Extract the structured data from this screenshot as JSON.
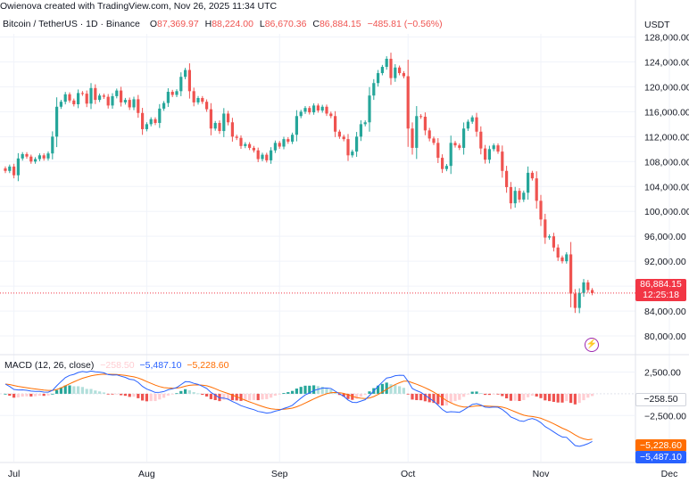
{
  "header": {
    "attribution": "Owienova created with TradingView.com, Nov 26, 2025 11:34 UTC",
    "symbol": "Bitcoin / TetherUS · 1D · Binance",
    "o_label": "O",
    "o_value": "87,369.97",
    "h_label": "H",
    "h_value": "88,224.00",
    "l_label": "L",
    "l_value": "86,670.36",
    "c_label": "C",
    "c_value": "86,884.15",
    "change": "−485.81 (−0.56%)",
    "currency": "USDT"
  },
  "price_badge": {
    "price": "86,884.15",
    "countdown": "12:25:18"
  },
  "macd": {
    "label": "MACD (12, 26, close)",
    "hist_value": "−258.50",
    "macd_value": "−5,487.10",
    "signal_value": "−5,228.60"
  },
  "colors": {
    "up": "#26a69a",
    "down": "#ef5350",
    "up_light": "#b2dfdb",
    "down_light": "#ffcdd2",
    "macd_line": "#2962ff",
    "signal_line": "#ff6d00",
    "grid": "#f0f3fa"
  },
  "chart_data": [
    {
      "type": "candlestick",
      "title": "Bitcoin / TetherUS · 1D · Binance",
      "x_ticks": [
        "Jul",
        "Aug",
        "Sep",
        "Oct",
        "Nov",
        "Dec"
      ],
      "y_ticks": [
        "128,000.00",
        "124,000.00",
        "120,000.00",
        "116,000.00",
        "112,000.00",
        "108,000.00",
        "104,000.00",
        "100,000.00",
        "96,000.00",
        "92,000.00",
        "88,000.00",
        "84,000.00",
        "80,000.00"
      ],
      "ylim": [
        77000,
        128500
      ],
      "grid": true,
      "start_date": "2025-06-29",
      "closes": [
        106500,
        107200,
        105800,
        108500,
        109200,
        108800,
        108000,
        108400,
        109000,
        108500,
        109300,
        112000,
        116800,
        117600,
        118800,
        117800,
        117200,
        119000,
        118900,
        117300,
        119800,
        117900,
        118600,
        118400,
        117000,
        118500,
        119400,
        117500,
        117900,
        116700,
        118000,
        115800,
        113200,
        114000,
        114800,
        114200,
        116500,
        117400,
        119200,
        118700,
        119300,
        121600,
        122700,
        119300,
        117500,
        118200,
        117600,
        116400,
        113300,
        114200,
        112900,
        115700,
        114300,
        112000,
        111800,
        110500,
        110800,
        110200,
        109800,
        108400,
        109100,
        108200,
        109800,
        111000,
        110400,
        111600,
        111200,
        112300,
        115300,
        116000,
        116600,
        115900,
        117000,
        116200,
        116800,
        115700,
        115300,
        112800,
        112000,
        111600,
        109000,
        109600,
        112000,
        114000,
        114300,
        118600,
        120600,
        122200,
        123200,
        124500,
        121400,
        123100,
        122200,
        121700,
        113300,
        110200,
        115300,
        115200,
        113000,
        111700,
        111000,
        108600,
        106800,
        107300,
        111000,
        110600,
        110200,
        113300,
        114400,
        115100,
        112800,
        110100,
        108300,
        110000,
        110600,
        109600,
        106500,
        103900,
        101300,
        103300,
        101900,
        103000,
        106200,
        105300,
        101700,
        98700,
        95800,
        96000,
        94200,
        92600,
        92000,
        93100,
        86800,
        84500,
        86900,
        88600,
        87370,
        86884
      ]
    },
    {
      "type": "macd",
      "title": "MACD (12, 26, close)",
      "y_ticks": [
        "2,500.00",
        "−2,500.00"
      ],
      "ylim": [
        -7800,
        4500
      ],
      "macd": [
        1120,
        845,
        504,
        443,
        449,
        400,
        309,
        267,
        273,
        196,
        189,
        386,
        924,
        1401,
        1859,
        2115,
        2237,
        2453,
        2564,
        2487,
        2615,
        2533,
        2492,
        2409,
        2206,
        2153,
        2174,
        2015,
        1886,
        1675,
        1608,
        1309,
        851,
        545,
        356,
        155,
        174,
        252,
        462,
        576,
        721,
        1057,
        1398,
        1372,
        1204,
        1074,
        873,
        611,
        149,
        -142,
        -470,
        -495,
        -622,
        -891,
        -1109,
        -1367,
        -1526,
        -1689,
        -1825,
        -2027,
        -2109,
        -2227,
        -2166,
        -1999,
        -1888,
        -1687,
        -1541,
        -1319,
        -898,
        -504,
        -138,
        96,
        379,
        510,
        652,
        660,
        610,
        297,
        -15,
        -291,
        -714,
        -985,
        -1000,
        -840,
        -680,
        -202,
        332,
        860,
        1341,
        1810,
        1900,
        2084,
        2137,
        2127,
        1432,
        610,
        363,
        160,
        -171,
        -526,
        -864,
        -1319,
        -1805,
        -2126,
        -2058,
        -2091,
        -2128,
        -1864,
        -1545,
        -1221,
        -1138,
        -1290,
        -1533,
        -1567,
        -1524,
        -1552,
        -1807,
        -2197,
        -2676,
        -2871,
        -3110,
        -3181,
        -2962,
        -2834,
        -3011,
        -3320,
        -3767,
        -4060,
        -4382,
        -4707,
        -4967,
        -5007,
        -5479,
        -5955,
        -6048,
        -5919,
        -5738,
        -5487
      ],
      "signal": [
        1120,
        1065,
        953,
        851,
        771,
        697,
        619,
        549,
        494,
        434,
        385,
        385,
        493,
        675,
        912,
        1152,
        1369,
        1586,
        1782,
        1923,
        2061,
        2155,
        2222,
        2259,
        2249,
        2230,
        2219,
        2178,
        2120,
        2031,
        1946,
        1819,
        1625,
        1409,
        1198,
        990,
        827,
        712,
        662,
        645,
        660,
        739,
        871,
        971,
        1018,
        1029,
        997,
        920,
        766,
        584,
        373,
        200,
        36,
        -149,
        -341,
        -546,
        -742,
        -931,
        -1110,
        -1293,
        -1456,
        -1610,
        -1721,
        -1777,
        -1799,
        -1777,
        -1730,
        -1648,
        -1498,
        -1299,
        -1067,
        -834,
        -592,
        -371,
        -167,
        -2,
        120,
        155,
        121,
        38,
        -113,
        -287,
        -430,
        -512,
        -546,
        -477,
        -315,
        -80,
        204,
        525,
        800,
        1057,
        1273,
        1444,
        1441,
        1275,
        1092,
        905,
        690,
        447,
        185,
        -116,
        -454,
        -789,
        -1042,
        -1252,
        -1427,
        -1514,
        -1520,
        -1460,
        -1395,
        -1374,
        -1406,
        -1438,
        -1455,
        -1475,
        -1541,
        -1672,
        -1873,
        -2073,
        -2280,
        -2460,
        -2561,
        -2616,
        -2695,
        -2820,
        -3010,
        -3220,
        -3452,
        -3703,
        -3956,
        -4166,
        -4429,
        -4735,
        -4997,
        -5182,
        -5293,
        -5228
      ]
    }
  ]
}
